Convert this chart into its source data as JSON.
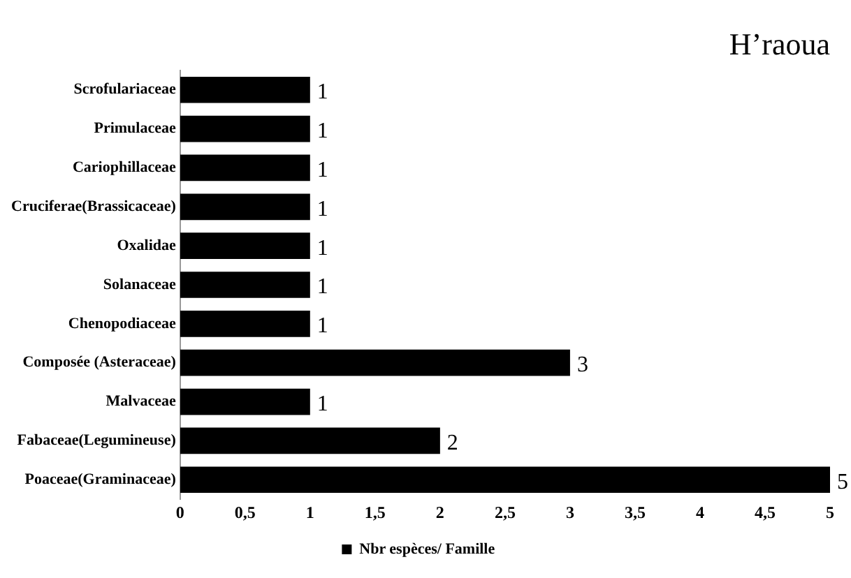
{
  "chart_data": {
    "type": "bar",
    "orientation": "horizontal",
    "title": "H’raoua",
    "categories": [
      "Scrofulariaceae",
      "Primulaceae",
      "Cariophillaceae",
      "Cruciferae(Brassicaceae)",
      "Oxalidae",
      "Solanaceae",
      "Chenopodiaceae",
      "Composée (Asteraceae)",
      "Malvaceae",
      "Fabaceae(Legumineuse)",
      "Poaceae(Graminaceae)"
    ],
    "series": [
      {
        "name": "Nbr espèces/ Famille",
        "color": "#000000",
        "values": [
          1,
          1,
          1,
          1,
          1,
          1,
          1,
          3,
          1,
          2,
          5
        ]
      }
    ],
    "xlim": [
      0,
      5
    ],
    "xticks": [
      0,
      {
        "value": 0.5,
        "label": "0,5"
      },
      1,
      {
        "value": 1.5,
        "label": "1,5"
      },
      2,
      {
        "value": 2.5,
        "label": "2,5"
      },
      3,
      {
        "value": 3.5,
        "label": "3,5"
      },
      4,
      {
        "value": 4.5,
        "label": "4,5"
      },
      5
    ],
    "data_labels": true,
    "grid": false,
    "legend": "bottom"
  }
}
